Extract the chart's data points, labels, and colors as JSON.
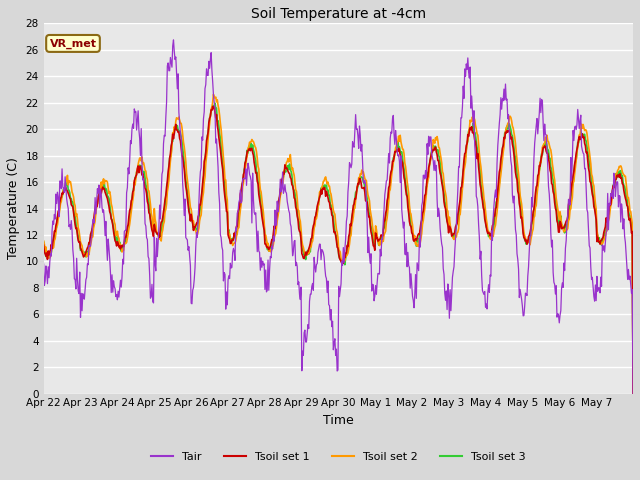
{
  "title": "Soil Temperature at -4cm",
  "xlabel": "Time",
  "ylabel": "Temperature (C)",
  "ylim": [
    0,
    28
  ],
  "yticks": [
    0,
    2,
    4,
    6,
    8,
    10,
    12,
    14,
    16,
    18,
    20,
    22,
    24,
    26,
    28
  ],
  "xtick_labels": [
    "Apr 22",
    "Apr 23",
    "Apr 24",
    "Apr 25",
    "Apr 26",
    "Apr 27",
    "Apr 28",
    "Apr 29",
    "Apr 30",
    "May 1",
    "May 2",
    "May 3",
    "May 4",
    "May 5",
    "May 6",
    "May 7"
  ],
  "colors": {
    "Tair": "#9933cc",
    "Tsoil1": "#cc0000",
    "Tsoil2": "#ff9900",
    "Tsoil3": "#33cc33"
  },
  "legend_label": "VR_met",
  "fig_bg": "#d8d8d8",
  "plot_bg": "#e8e8e8",
  "grid_color": "#ffffff",
  "n_days": 16,
  "pts_per_day": 48,
  "figsize": [
    6.4,
    4.8
  ],
  "dpi": 100
}
